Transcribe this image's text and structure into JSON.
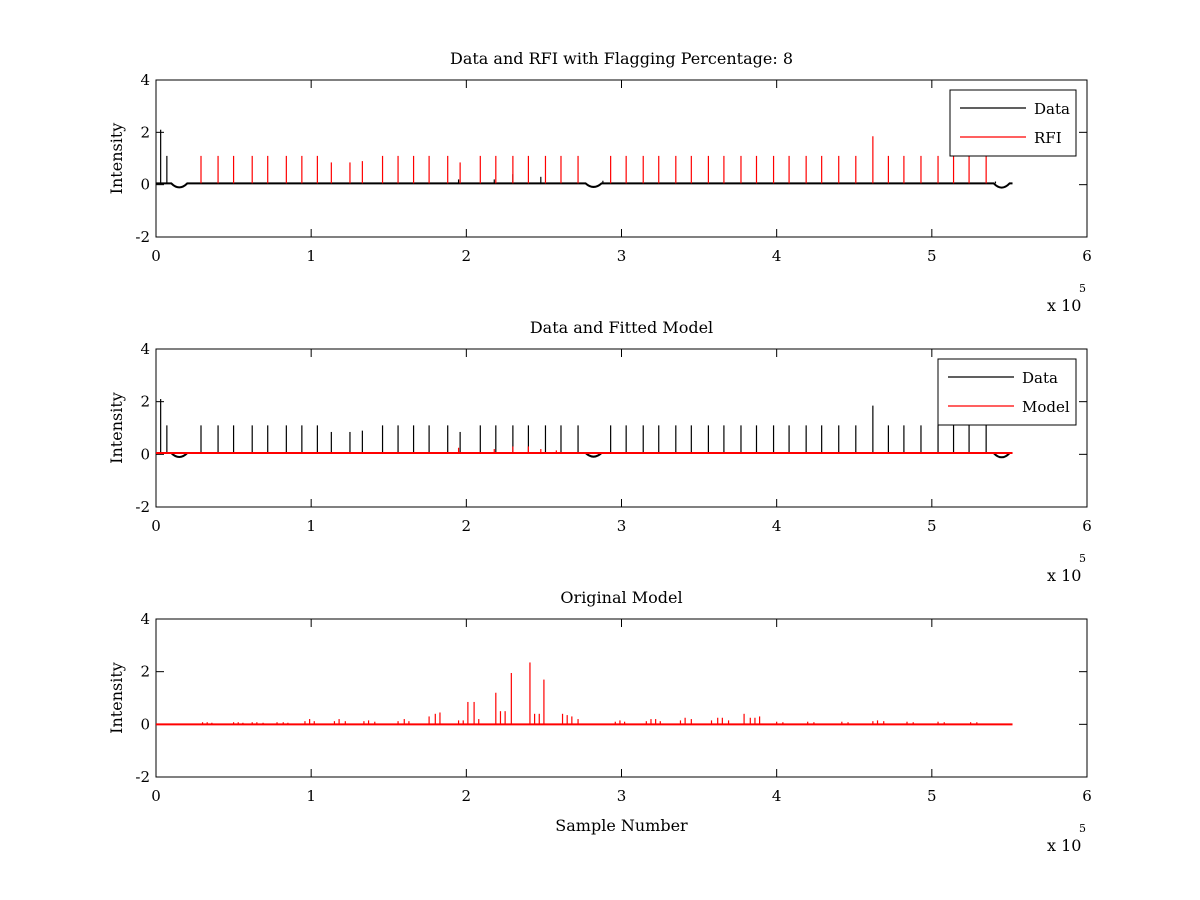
{
  "chart_data": [
    {
      "type": "line",
      "title": "Data and RFI with Flagging Percentage: 8",
      "xlabel": "",
      "ylabel": "Intensity",
      "xlim": [
        0,
        600000
      ],
      "ylim": [
        -2,
        4
      ],
      "x_ticks": [
        0,
        1,
        2,
        3,
        4,
        5,
        6
      ],
      "x_multiplier": "x 10",
      "x_multiplier_exp": "5",
      "y_ticks": [
        -2,
        0,
        2,
        4
      ],
      "grid": false,
      "legend_position": "top-right",
      "legend": [
        "Data",
        "RFI"
      ],
      "series": [
        {
          "name": "Data",
          "color": "#000000",
          "baseline": 0.05,
          "extent": [
            0,
            552000
          ],
          "dips": [
            {
              "x": 15000,
              "y": -0.18
            },
            {
              "x": 282000,
              "y": -0.15
            },
            {
              "x": 545000,
              "y": -0.2
            }
          ],
          "spikes": [
            {
              "x": 3000,
              "y": 2.1
            },
            {
              "x": 7000,
              "y": 1.1
            },
            {
              "x": 195000,
              "y": 0.2
            },
            {
              "x": 218000,
              "y": 0.2
            },
            {
              "x": 230000,
              "y": 0.4
            },
            {
              "x": 248000,
              "y": 0.3
            },
            {
              "x": 288000,
              "y": 0.15
            },
            {
              "x": 541000,
              "y": 0.12
            }
          ]
        },
        {
          "name": "RFI",
          "color": "#ff0000",
          "baseline": 0.05,
          "spikes": [
            {
              "x": 29000,
              "y": 1.1
            },
            {
              "x": 40000,
              "y": 1.1
            },
            {
              "x": 50000,
              "y": 1.1
            },
            {
              "x": 62000,
              "y": 1.1
            },
            {
              "x": 72000,
              "y": 1.1
            },
            {
              "x": 84000,
              "y": 1.1
            },
            {
              "x": 94000,
              "y": 1.1
            },
            {
              "x": 104000,
              "y": 1.1
            },
            {
              "x": 113000,
              "y": 0.85
            },
            {
              "x": 125000,
              "y": 0.85
            },
            {
              "x": 133000,
              "y": 0.9
            },
            {
              "x": 146000,
              "y": 1.1
            },
            {
              "x": 156000,
              "y": 1.1
            },
            {
              "x": 166000,
              "y": 1.1
            },
            {
              "x": 176000,
              "y": 1.1
            },
            {
              "x": 188000,
              "y": 1.1
            },
            {
              "x": 196000,
              "y": 0.85
            },
            {
              "x": 209000,
              "y": 1.1
            },
            {
              "x": 219000,
              "y": 1.1
            },
            {
              "x": 230000,
              "y": 1.1
            },
            {
              "x": 240000,
              "y": 1.1
            },
            {
              "x": 251000,
              "y": 1.1
            },
            {
              "x": 261000,
              "y": 1.1
            },
            {
              "x": 272000,
              "y": 1.1
            },
            {
              "x": 293000,
              "y": 1.1
            },
            {
              "x": 303000,
              "y": 1.1
            },
            {
              "x": 314000,
              "y": 1.1
            },
            {
              "x": 324000,
              "y": 1.1
            },
            {
              "x": 335000,
              "y": 1.1
            },
            {
              "x": 345000,
              "y": 1.1
            },
            {
              "x": 356000,
              "y": 1.1
            },
            {
              "x": 366000,
              "y": 1.1
            },
            {
              "x": 377000,
              "y": 1.1
            },
            {
              "x": 387000,
              "y": 1.1
            },
            {
              "x": 398000,
              "y": 1.1
            },
            {
              "x": 408000,
              "y": 1.1
            },
            {
              "x": 419000,
              "y": 1.1
            },
            {
              "x": 429000,
              "y": 1.1
            },
            {
              "x": 440000,
              "y": 1.1
            },
            {
              "x": 451000,
              "y": 1.1
            },
            {
              "x": 462000,
              "y": 1.85
            },
            {
              "x": 472000,
              "y": 1.1
            },
            {
              "x": 482000,
              "y": 1.1
            },
            {
              "x": 493000,
              "y": 1.1
            },
            {
              "x": 504000,
              "y": 1.1
            },
            {
              "x": 514000,
              "y": 1.1
            },
            {
              "x": 524000,
              "y": 1.1
            },
            {
              "x": 535000,
              "y": 1.1
            }
          ]
        }
      ]
    },
    {
      "type": "line",
      "title": "Data and Fitted Model",
      "xlabel": "",
      "ylabel": "Intensity",
      "xlim": [
        0,
        600000
      ],
      "ylim": [
        -2,
        4
      ],
      "x_ticks": [
        0,
        1,
        2,
        3,
        4,
        5,
        6
      ],
      "x_multiplier": "x 10",
      "x_multiplier_exp": "5",
      "y_ticks": [
        -2,
        0,
        2,
        4
      ],
      "grid": false,
      "legend_position": "top-right",
      "legend": [
        "Data",
        "Model"
      ],
      "series": [
        {
          "name": "Data",
          "color": "#000000",
          "baseline": 0.05,
          "extent": [
            0,
            552000
          ],
          "dips": [
            {
              "x": 15000,
              "y": -0.18
            },
            {
              "x": 282000,
              "y": -0.15
            },
            {
              "x": 545000,
              "y": -0.2
            }
          ],
          "spikes": [
            {
              "x": 3000,
              "y": 2.1
            },
            {
              "x": 7000,
              "y": 1.1
            },
            {
              "x": 29000,
              "y": 1.1
            },
            {
              "x": 40000,
              "y": 1.1
            },
            {
              "x": 50000,
              "y": 1.1
            },
            {
              "x": 62000,
              "y": 1.1
            },
            {
              "x": 72000,
              "y": 1.1
            },
            {
              "x": 84000,
              "y": 1.1
            },
            {
              "x": 94000,
              "y": 1.1
            },
            {
              "x": 104000,
              "y": 1.1
            },
            {
              "x": 113000,
              "y": 0.85
            },
            {
              "x": 125000,
              "y": 0.85
            },
            {
              "x": 133000,
              "y": 0.9
            },
            {
              "x": 146000,
              "y": 1.1
            },
            {
              "x": 156000,
              "y": 1.1
            },
            {
              "x": 166000,
              "y": 1.1
            },
            {
              "x": 176000,
              "y": 1.1
            },
            {
              "x": 188000,
              "y": 1.1
            },
            {
              "x": 196000,
              "y": 0.85
            },
            {
              "x": 209000,
              "y": 1.1
            },
            {
              "x": 219000,
              "y": 1.1
            },
            {
              "x": 230000,
              "y": 1.1
            },
            {
              "x": 240000,
              "y": 1.1
            },
            {
              "x": 251000,
              "y": 1.1
            },
            {
              "x": 261000,
              "y": 1.1
            },
            {
              "x": 272000,
              "y": 1.1
            },
            {
              "x": 293000,
              "y": 1.1
            },
            {
              "x": 303000,
              "y": 1.1
            },
            {
              "x": 314000,
              "y": 1.1
            },
            {
              "x": 324000,
              "y": 1.1
            },
            {
              "x": 335000,
              "y": 1.1
            },
            {
              "x": 345000,
              "y": 1.1
            },
            {
              "x": 356000,
              "y": 1.1
            },
            {
              "x": 366000,
              "y": 1.1
            },
            {
              "x": 377000,
              "y": 1.1
            },
            {
              "x": 387000,
              "y": 1.1
            },
            {
              "x": 398000,
              "y": 1.1
            },
            {
              "x": 408000,
              "y": 1.1
            },
            {
              "x": 419000,
              "y": 1.1
            },
            {
              "x": 429000,
              "y": 1.1
            },
            {
              "x": 440000,
              "y": 1.1
            },
            {
              "x": 451000,
              "y": 1.1
            },
            {
              "x": 462000,
              "y": 1.85
            },
            {
              "x": 472000,
              "y": 1.1
            },
            {
              "x": 482000,
              "y": 1.1
            },
            {
              "x": 493000,
              "y": 1.1
            },
            {
              "x": 504000,
              "y": 1.1
            },
            {
              "x": 514000,
              "y": 1.1
            },
            {
              "x": 524000,
              "y": 1.1
            },
            {
              "x": 535000,
              "y": 1.1
            }
          ]
        },
        {
          "name": "Model",
          "color": "#ff0000",
          "baseline": 0.05,
          "extent": [
            0,
            552000
          ],
          "spikes": [
            {
              "x": 195000,
              "y": 0.25
            },
            {
              "x": 218000,
              "y": 0.2
            },
            {
              "x": 230000,
              "y": 0.3
            },
            {
              "x": 240000,
              "y": 0.3
            },
            {
              "x": 248000,
              "y": 0.2
            },
            {
              "x": 258000,
              "y": 0.15
            }
          ]
        }
      ]
    },
    {
      "type": "line",
      "title": "Original Model",
      "xlabel": "Sample Number",
      "ylabel": "Intensity",
      "xlim": [
        0,
        600000
      ],
      "ylim": [
        -2,
        4
      ],
      "x_ticks": [
        0,
        1,
        2,
        3,
        4,
        5,
        6
      ],
      "x_multiplier": "x 10",
      "x_multiplier_exp": "5",
      "y_ticks": [
        -2,
        0,
        2,
        4
      ],
      "grid": false,
      "series": [
        {
          "name": "",
          "color": "#ff0000",
          "baseline": 0.0,
          "extent": [
            0,
            552000
          ],
          "spikes": [
            {
              "x": 30000,
              "y": 0.08
            },
            {
              "x": 33000,
              "y": 0.08
            },
            {
              "x": 36000,
              "y": 0.06
            },
            {
              "x": 50000,
              "y": 0.08
            },
            {
              "x": 53000,
              "y": 0.08
            },
            {
              "x": 56000,
              "y": 0.06
            },
            {
              "x": 62000,
              "y": 0.08
            },
            {
              "x": 65000,
              "y": 0.08
            },
            {
              "x": 69000,
              "y": 0.06
            },
            {
              "x": 78000,
              "y": 0.08
            },
            {
              "x": 82000,
              "y": 0.08
            },
            {
              "x": 85000,
              "y": 0.06
            },
            {
              "x": 96000,
              "y": 0.12
            },
            {
              "x": 99000,
              "y": 0.2
            },
            {
              "x": 102000,
              "y": 0.12
            },
            {
              "x": 115000,
              "y": 0.12
            },
            {
              "x": 118000,
              "y": 0.2
            },
            {
              "x": 122000,
              "y": 0.12
            },
            {
              "x": 134000,
              "y": 0.12
            },
            {
              "x": 137000,
              "y": 0.15
            },
            {
              "x": 141000,
              "y": 0.1
            },
            {
              "x": 156000,
              "y": 0.12
            },
            {
              "x": 160000,
              "y": 0.2
            },
            {
              "x": 163000,
              "y": 0.12
            },
            {
              "x": 176000,
              "y": 0.3
            },
            {
              "x": 180000,
              "y": 0.4
            },
            {
              "x": 183000,
              "y": 0.45
            },
            {
              "x": 195000,
              "y": 0.15
            },
            {
              "x": 198000,
              "y": 0.15
            },
            {
              "x": 201000,
              "y": 0.85
            },
            {
              "x": 205000,
              "y": 0.85
            },
            {
              "x": 208000,
              "y": 0.2
            },
            {
              "x": 219000,
              "y": 1.2
            },
            {
              "x": 222000,
              "y": 0.5
            },
            {
              "x": 225000,
              "y": 0.5
            },
            {
              "x": 229000,
              "y": 1.95
            },
            {
              "x": 241000,
              "y": 2.35
            },
            {
              "x": 244000,
              "y": 0.4
            },
            {
              "x": 247000,
              "y": 0.4
            },
            {
              "x": 250000,
              "y": 1.7
            },
            {
              "x": 262000,
              "y": 0.4
            },
            {
              "x": 265000,
              "y": 0.35
            },
            {
              "x": 268000,
              "y": 0.3
            },
            {
              "x": 272000,
              "y": 0.2
            },
            {
              "x": 296000,
              "y": 0.1
            },
            {
              "x": 299000,
              "y": 0.15
            },
            {
              "x": 302000,
              "y": 0.1
            },
            {
              "x": 316000,
              "y": 0.12
            },
            {
              "x": 319000,
              "y": 0.2
            },
            {
              "x": 322000,
              "y": 0.2
            },
            {
              "x": 325000,
              "y": 0.12
            },
            {
              "x": 338000,
              "y": 0.15
            },
            {
              "x": 341000,
              "y": 0.25
            },
            {
              "x": 345000,
              "y": 0.2
            },
            {
              "x": 358000,
              "y": 0.15
            },
            {
              "x": 362000,
              "y": 0.25
            },
            {
              "x": 365000,
              "y": 0.25
            },
            {
              "x": 369000,
              "y": 0.15
            },
            {
              "x": 379000,
              "y": 0.4
            },
            {
              "x": 383000,
              "y": 0.25
            },
            {
              "x": 386000,
              "y": 0.25
            },
            {
              "x": 389000,
              "y": 0.3
            },
            {
              "x": 400000,
              "y": 0.1
            },
            {
              "x": 404000,
              "y": 0.08
            },
            {
              "x": 420000,
              "y": 0.1
            },
            {
              "x": 424000,
              "y": 0.08
            },
            {
              "x": 442000,
              "y": 0.1
            },
            {
              "x": 446000,
              "y": 0.08
            },
            {
              "x": 462000,
              "y": 0.12
            },
            {
              "x": 465000,
              "y": 0.15
            },
            {
              "x": 469000,
              "y": 0.12
            },
            {
              "x": 484000,
              "y": 0.1
            },
            {
              "x": 488000,
              "y": 0.08
            },
            {
              "x": 504000,
              "y": 0.1
            },
            {
              "x": 508000,
              "y": 0.08
            },
            {
              "x": 525000,
              "y": 0.08
            },
            {
              "x": 529000,
              "y": 0.08
            }
          ]
        }
      ]
    }
  ]
}
